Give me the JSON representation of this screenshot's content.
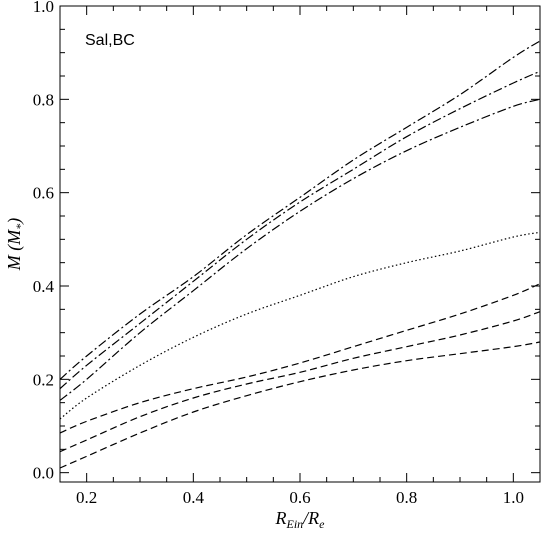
{
  "chart_data": {
    "type": "line",
    "annotation": "Sal,BC",
    "xlabel": {
      "main": "R",
      "sub1": "Ein",
      "sep": "/R",
      "sub2": "e"
    },
    "ylabel": {
      "main": "M",
      "open": " (M",
      "sub": "*",
      "close": ")"
    },
    "xlim": [
      0.15,
      1.05
    ],
    "ylim": [
      -0.02,
      1.0
    ],
    "x_ticks": [
      0.2,
      0.4,
      0.6,
      0.8,
      1.0
    ],
    "x_tick_labels": [
      "0.2",
      "0.4",
      "0.6",
      "0.8",
      "1.0"
    ],
    "y_ticks": [
      0.0,
      0.2,
      0.4,
      0.6,
      0.8,
      1.0
    ],
    "y_tick_labels": [
      "0.0",
      "0.2",
      "0.4",
      "0.6",
      "0.8",
      "1.0"
    ],
    "grid": false,
    "legend": "none",
    "x": [
      0.15,
      0.2,
      0.3,
      0.4,
      0.5,
      0.6,
      0.7,
      0.8,
      0.9,
      1.0,
      1.05
    ],
    "series": [
      {
        "style": "dashdot",
        "values": [
          0.2,
          0.25,
          0.34,
          0.42,
          0.51,
          0.59,
          0.67,
          0.74,
          0.81,
          0.89,
          0.925
        ]
      },
      {
        "style": "dashdot",
        "values": [
          0.18,
          0.23,
          0.32,
          0.41,
          0.5,
          0.58,
          0.65,
          0.72,
          0.78,
          0.835,
          0.86
        ]
      },
      {
        "style": "dashdot",
        "values": [
          0.155,
          0.2,
          0.3,
          0.39,
          0.48,
          0.56,
          0.63,
          0.69,
          0.74,
          0.785,
          0.8
        ]
      },
      {
        "style": "dotted",
        "values": [
          0.115,
          0.16,
          0.23,
          0.29,
          0.34,
          0.38,
          0.42,
          0.45,
          0.475,
          0.505,
          0.515
        ]
      },
      {
        "style": "dashed",
        "values": [
          0.085,
          0.11,
          0.15,
          0.18,
          0.205,
          0.235,
          0.27,
          0.305,
          0.34,
          0.38,
          0.405
        ]
      },
      {
        "style": "dashed",
        "values": [
          0.045,
          0.07,
          0.12,
          0.16,
          0.19,
          0.215,
          0.245,
          0.27,
          0.295,
          0.325,
          0.345
        ]
      },
      {
        "style": "dashed",
        "values": [
          0.01,
          0.035,
          0.085,
          0.13,
          0.165,
          0.195,
          0.22,
          0.24,
          0.255,
          0.27,
          0.28
        ]
      }
    ]
  }
}
